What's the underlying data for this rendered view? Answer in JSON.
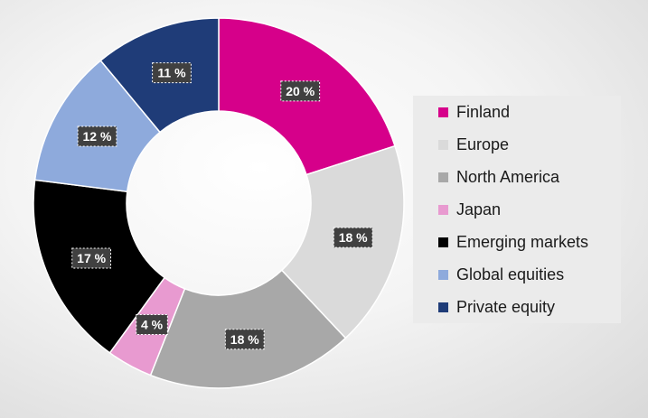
{
  "chart_data": {
    "type": "pie",
    "donut": true,
    "categories": [
      "Finland",
      "Europe",
      "North America",
      "Japan",
      "Emerging markets",
      "Global equities",
      "Private equity"
    ],
    "values": [
      20,
      18,
      18,
      4,
      17,
      12,
      11
    ],
    "labels": [
      "20 %",
      "18 %",
      "18 %",
      "4 %",
      "17 %",
      "12 %",
      "11 %"
    ],
    "colors": [
      "#d6008a",
      "#dadada",
      "#a8a8a8",
      "#e89ad0",
      "#000000",
      "#8eaadc",
      "#1f3c78"
    ],
    "unit": "%",
    "legend_position": "right"
  }
}
